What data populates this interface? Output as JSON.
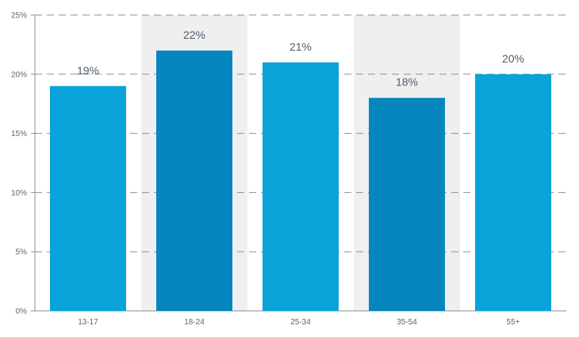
{
  "chart_data": {
    "type": "bar",
    "categories": [
      "13-17",
      "18-24",
      "25-34",
      "35-54",
      "55+"
    ],
    "values": [
      19,
      22,
      21,
      18,
      20
    ],
    "value_labels": [
      "19%",
      "22%",
      "21%",
      "18%",
      "20%"
    ],
    "y_ticks": [
      0,
      5,
      10,
      15,
      20,
      25
    ],
    "y_tick_labels": [
      "0%",
      "5%",
      "10%",
      "15%",
      "20%",
      "25%"
    ],
    "title": "",
    "xlabel": "",
    "ylabel": "",
    "ylim": [
      0,
      25
    ],
    "grid": true,
    "grid_style": "dashed",
    "legend": false,
    "highlighted_categories": [
      "18-24",
      "35-54"
    ],
    "colors": {
      "bar": "#09a3da",
      "bar_highlight": "#0586bf",
      "band": "#efefef",
      "grid": "#8a8f94",
      "axis": "#8a8f94",
      "tick_text": "#5b6670",
      "label_text": "#4f5d6b"
    }
  }
}
